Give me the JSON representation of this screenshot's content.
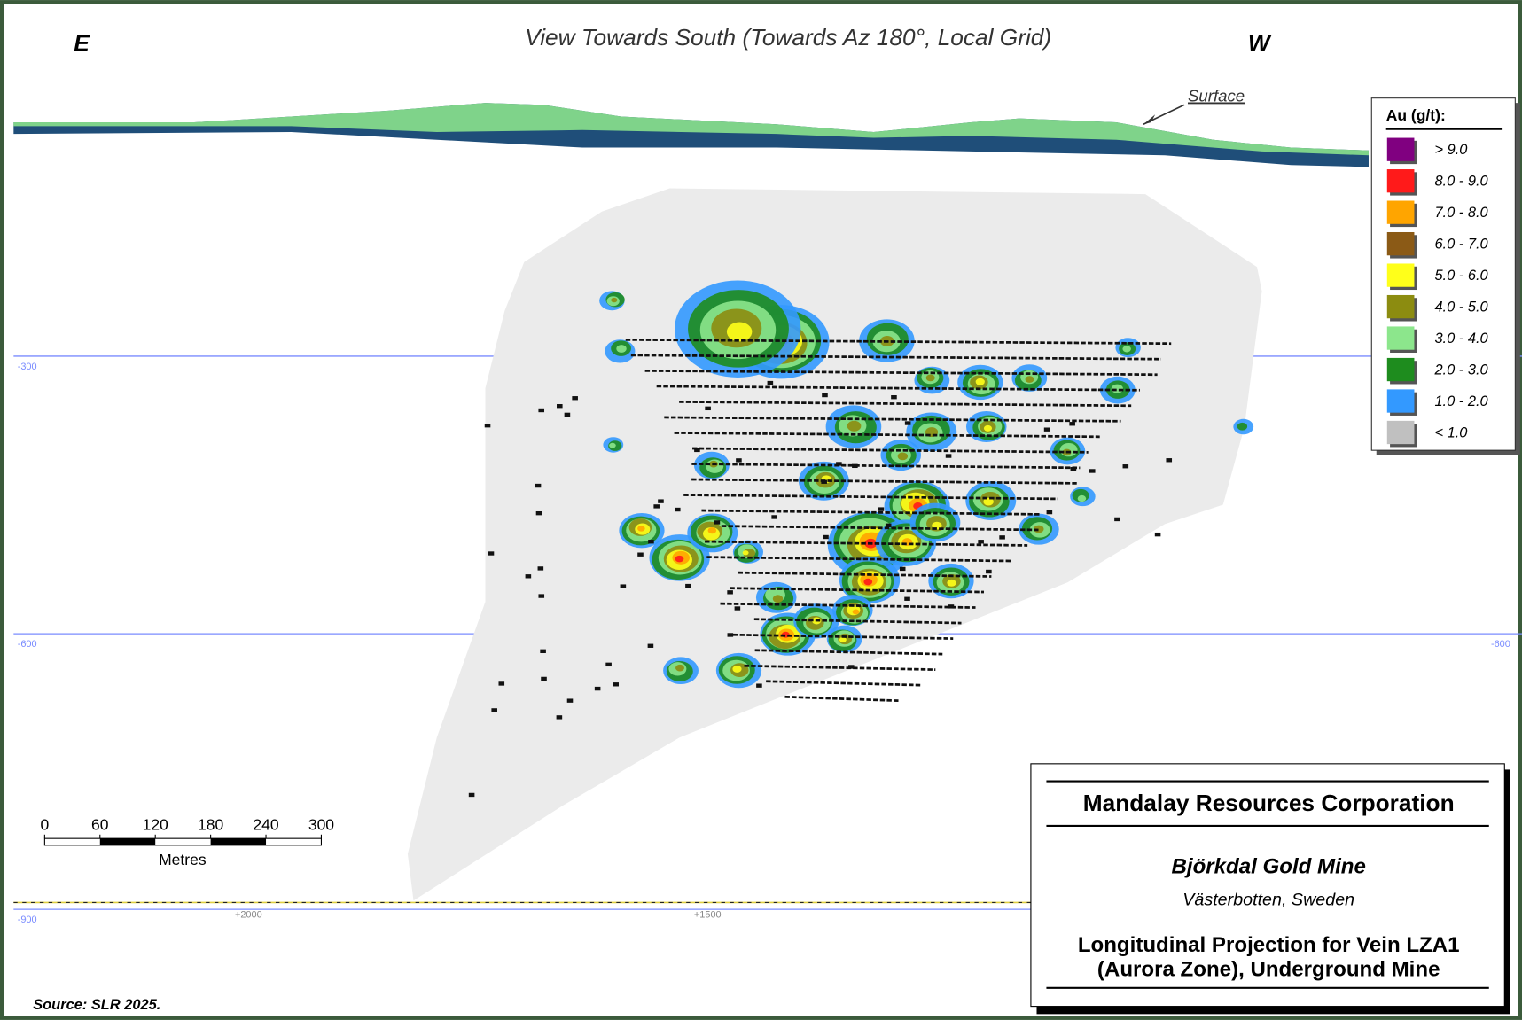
{
  "header": {
    "east": "E",
    "west": "W",
    "title": "View Towards South (Towards Az 180°, Local Grid)",
    "surface_label": "Surface"
  },
  "legend": {
    "title": "Au (g/t):",
    "items": [
      {
        "label": "> 9.0",
        "color": "#800080"
      },
      {
        "label": "8.0 - 9.0",
        "color": "#ff1a1a"
      },
      {
        "label": "7.0 - 8.0",
        "color": "#ffa500"
      },
      {
        "label": "6.0 - 7.0",
        "color": "#8b5a16"
      },
      {
        "label": "5.0 - 6.0",
        "color": "#ffff1a"
      },
      {
        "label": "4.0 - 5.0",
        "color": "#8c8c10"
      },
      {
        "label": "3.0 - 4.0",
        "color": "#8ce68c"
      },
      {
        "label": "2.0 - 3.0",
        "color": "#1e8c1e"
      },
      {
        "label": "1.0 - 2.0",
        "color": "#3399ff"
      },
      {
        "label": "< 1.0",
        "color": "#c0c0c0"
      }
    ]
  },
  "level_labels": {
    "left": [
      "-300",
      "-600",
      "-900"
    ],
    "right": [
      "-600"
    ]
  },
  "easting_labels": [
    "+2000",
    "+1500"
  ],
  "scale_bar": {
    "ticks": [
      "0",
      "60",
      "120",
      "180",
      "240",
      "300"
    ],
    "unit": "Metres"
  },
  "title_block": {
    "company": "Mandalay Resources Corporation",
    "mine": "Björkdal Gold Mine",
    "location": "Västerbotten, Sweden",
    "description": [
      "Longitudinal Projection for Vein LZA1",
      "(Aurora Zone), Underground Mine"
    ]
  },
  "source": "Source:  SLR 2025."
}
